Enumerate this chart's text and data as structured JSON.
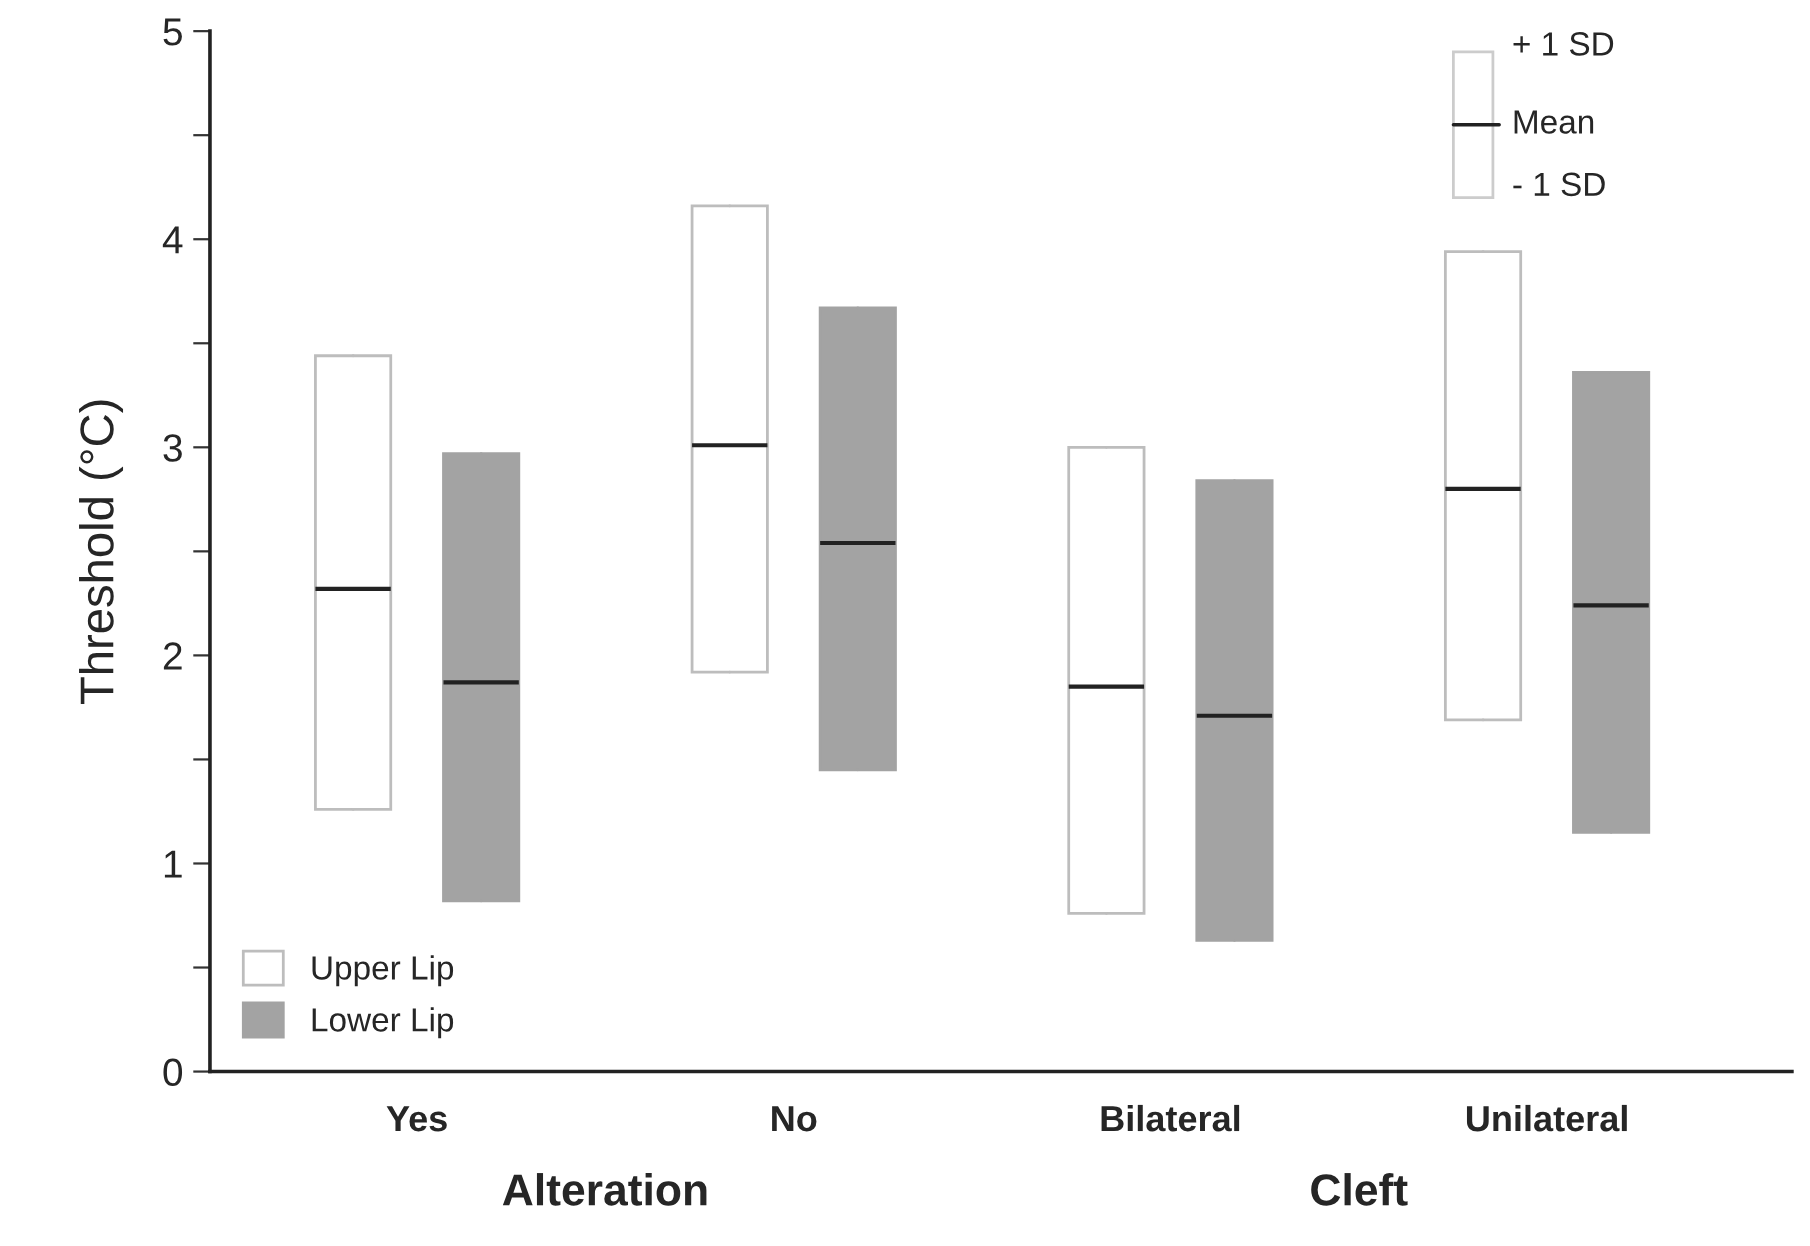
{
  "chart_data": {
    "type": "box",
    "ylabel": "Threshold (°C)",
    "categories": [
      "Yes",
      "No",
      "Bilateral",
      "Unilateral"
    ],
    "series": [
      {
        "name": "Upper Lip",
        "color": "#ffffff",
        "boxes": [
          {
            "low": 1.26,
            "q1": 1.26,
            "median": 2.32,
            "q3": 3.44,
            "high": 3.44
          },
          {
            "low": 1.92,
            "q1": 1.92,
            "median": 3.01,
            "q3": 4.16,
            "high": 4.16
          },
          {
            "low": 0.76,
            "q1": 0.76,
            "median": 1.85,
            "q3": 3.0,
            "high": 3.0
          },
          {
            "low": 1.69,
            "q1": 1.69,
            "median": 2.8,
            "q3": 3.94,
            "high": 3.94
          }
        ]
      },
      {
        "name": "Lower Lip",
        "color": "#a3a3a3",
        "boxes": [
          {
            "low": 0.82,
            "q1": 0.82,
            "median": 1.87,
            "q3": 2.97,
            "high": 2.97
          },
          {
            "low": 1.45,
            "q1": 1.45,
            "median": 2.54,
            "q3": 3.67,
            "high": 3.67
          },
          {
            "low": 0.63,
            "q1": 0.63,
            "median": 1.71,
            "q3": 2.84,
            "high": 2.84
          },
          {
            "low": 1.15,
            "q1": 1.15,
            "median": 2.24,
            "q3": 3.36,
            "high": 3.36
          }
        ]
      }
    ],
    "ylim": [
      0,
      5
    ],
    "yticks": [
      0,
      {
        "value": 0.5,
        "label": null
      },
      1,
      {
        "value": 1.5,
        "label": null
      },
      2,
      {
        "value": 2.5,
        "label": null
      },
      3,
      {
        "value": 3.5,
        "label": null
      },
      4,
      {
        "value": 4.5,
        "label": null
      },
      5
    ],
    "annotations": [
      "Alteration",
      "Cleft",
      "+ 1 SD",
      "Mean",
      "- 1 SD"
    ],
    "legend": "bottom left",
    "grid": false
  }
}
